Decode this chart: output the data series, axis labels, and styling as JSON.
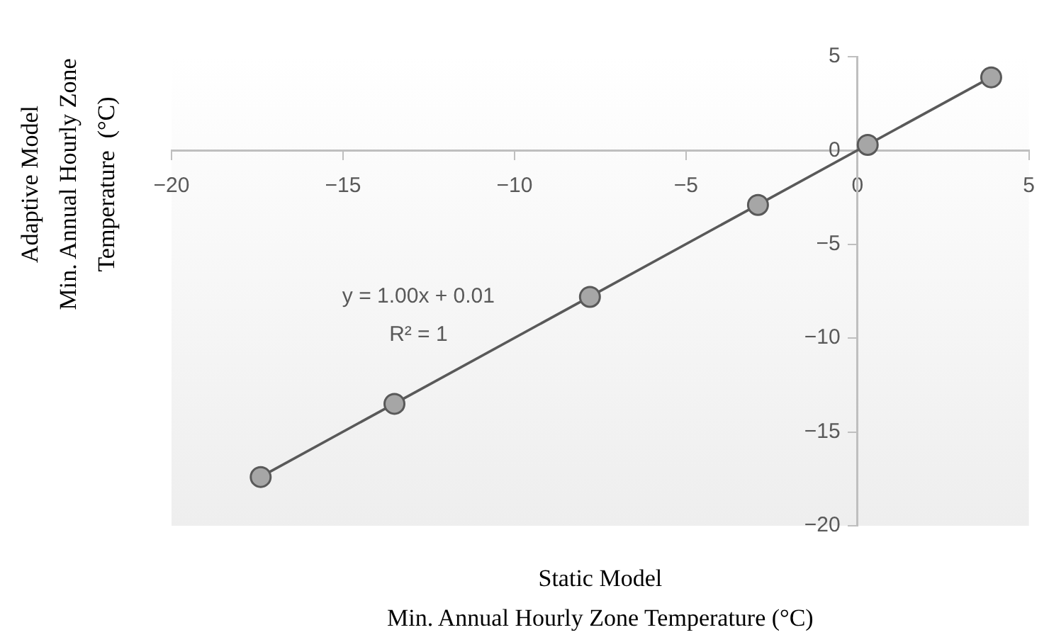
{
  "chart_data": {
    "type": "scatter",
    "xlabel": "Static Model\nMin. Annual Hourly Zone Temperature (°C)",
    "ylabel": "Adaptive Model\nMin. Annual Hourly Zone\nTemperature  (°C)",
    "x": [
      -17.4,
      -13.5,
      -7.8,
      -2.9,
      0.3,
      3.9
    ],
    "series": [
      {
        "color": "#a6a6a6",
        "marker": "circle",
        "values": [
          -17.4,
          -13.5,
          -7.8,
          -2.9,
          0.3,
          3.9
        ]
      },
      {
        "type": "line",
        "color": "#595959",
        "x": [
          -17.4,
          3.9
        ],
        "values": [
          -17.39,
          3.91
        ]
      }
    ],
    "xlim": [
      -20,
      5
    ],
    "xticks": [
      -20,
      -15,
      -10,
      -5,
      0,
      5
    ],
    "ylim": [
      -20,
      5
    ],
    "yticks": [
      -20,
      -15,
      -10,
      -5,
      0,
      5
    ],
    "annotations": [
      "y = 1.00x + 0.01",
      "R² = 1"
    ],
    "grid": false,
    "legend": false
  }
}
